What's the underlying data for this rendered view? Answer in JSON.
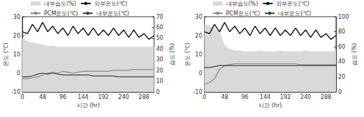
{
  "chart_data": [
    {
      "type": "line",
      "x_label": "시간 (hr)",
      "y_label": "온도 (℃)",
      "y2_label": "습도 (%)",
      "legend": "top",
      "xlim": [
        0,
        312
      ],
      "xticks": [
        0,
        48,
        96,
        144,
        192,
        240,
        288
      ],
      "ylim": [
        -10,
        30
      ],
      "yticks": [
        -10,
        0,
        10,
        20,
        30
      ],
      "y2lim": [
        0,
        70
      ],
      "y2ticks": [
        0,
        10,
        20,
        30,
        40,
        50,
        60,
        70
      ],
      "x": [
        0,
        12,
        24,
        36,
        48,
        60,
        72,
        84,
        96,
        108,
        120,
        132,
        144,
        156,
        168,
        180,
        192,
        204,
        216,
        228,
        240,
        252,
        264,
        276,
        288,
        300,
        312
      ],
      "series": [
        {
          "name": "내부습도(%)",
          "type": "area",
          "axis": "y2",
          "color": "#d9d9d9",
          "values": [
            50,
            47,
            46,
            45,
            44,
            43,
            43,
            42,
            42,
            42,
            42,
            42,
            42,
            42,
            42,
            42,
            42,
            42,
            42,
            42,
            42,
            42,
            42,
            42,
            42,
            42,
            42
          ]
        },
        {
          "name": "외부온도(℃)",
          "type": "line",
          "color": "#1a1a1a",
          "values": [
            22,
            21,
            26,
            22,
            27,
            22,
            25,
            21,
            24,
            20,
            25,
            21,
            24,
            20,
            24,
            20,
            23,
            20,
            24,
            20,
            23,
            19,
            23,
            19,
            21,
            18,
            20
          ]
        },
        {
          "name": "PCM온도(℃)",
          "type": "line",
          "color": "#8c8c8c",
          "values": [
            -3,
            -3,
            -2.5,
            -2,
            -1,
            0,
            0.5,
            0,
            1,
            0.5,
            0,
            0.5,
            1,
            1,
            1,
            1,
            1,
            1,
            1.5,
            1.5,
            1.5,
            1.5,
            2,
            2,
            2,
            2,
            2
          ]
        },
        {
          "name": "내부온도(℃)",
          "type": "line",
          "color": "#404040",
          "values": [
            -2,
            -2,
            -1.5,
            -0.5,
            0,
            -0.5,
            0,
            -0.5,
            -1,
            -1,
            -1,
            -1,
            -1,
            -1,
            -1.5,
            -1.5,
            -1.5,
            -1.5,
            -1.5,
            -2,
            -2,
            -2,
            -2,
            -2,
            -2,
            -2,
            -2
          ]
        }
      ]
    },
    {
      "type": "line",
      "x_label": "시간 (hr)",
      "y_label": "온도 (℃)",
      "y2_label": "습도 (%)",
      "legend": "top",
      "xlim": [
        0,
        312
      ],
      "xticks": [
        0,
        48,
        96,
        144,
        192,
        240,
        288
      ],
      "ylim": [
        -10,
        30
      ],
      "yticks": [
        -10,
        0,
        10,
        20,
        30
      ],
      "y2lim": [
        0,
        100
      ],
      "y2ticks": [
        0,
        20,
        40,
        60,
        80,
        100
      ],
      "x": [
        0,
        12,
        24,
        36,
        48,
        60,
        72,
        84,
        96,
        108,
        120,
        132,
        144,
        156,
        168,
        180,
        192,
        204,
        216,
        228,
        240,
        252,
        264,
        276,
        288,
        300,
        312
      ],
      "series": [
        {
          "name": "내부습도(%)",
          "type": "area",
          "axis": "y2",
          "color": "#d9d9d9",
          "values": [
            90,
            88,
            85,
            80,
            62,
            57,
            55,
            55,
            54,
            54,
            54,
            55,
            54,
            54,
            54,
            55,
            54,
            54,
            54,
            54,
            55,
            54,
            54,
            54,
            54,
            54,
            54
          ]
        },
        {
          "name": "외부온도(℃)",
          "type": "line",
          "color": "#1a1a1a",
          "values": [
            22,
            21,
            26,
            22,
            27,
            22,
            25,
            21,
            24,
            20,
            25,
            21,
            24,
            20,
            24,
            20,
            23,
            20,
            24,
            20,
            23,
            19,
            23,
            19,
            21,
            18,
            20
          ]
        },
        {
          "name": "PCM온도(℃)",
          "type": "line",
          "color": "#8c8c8c",
          "values": [
            -6,
            -5,
            -3,
            2,
            4,
            4.5,
            5,
            5,
            5,
            5,
            5,
            5,
            5,
            5,
            5,
            5,
            5,
            5,
            5,
            4.5,
            4.5,
            4.5,
            4.5,
            4.5,
            4.5,
            4.5,
            4.5
          ]
        },
        {
          "name": "내부온도(℃)",
          "type": "line",
          "color": "#404040",
          "values": [
            3,
            3,
            3.5,
            4,
            4,
            4,
            4,
            4,
            4,
            4,
            4,
            4,
            4,
            4,
            4,
            4,
            4,
            4,
            4,
            4,
            4,
            4,
            4,
            4,
            4,
            4,
            4
          ]
        }
      ]
    }
  ]
}
